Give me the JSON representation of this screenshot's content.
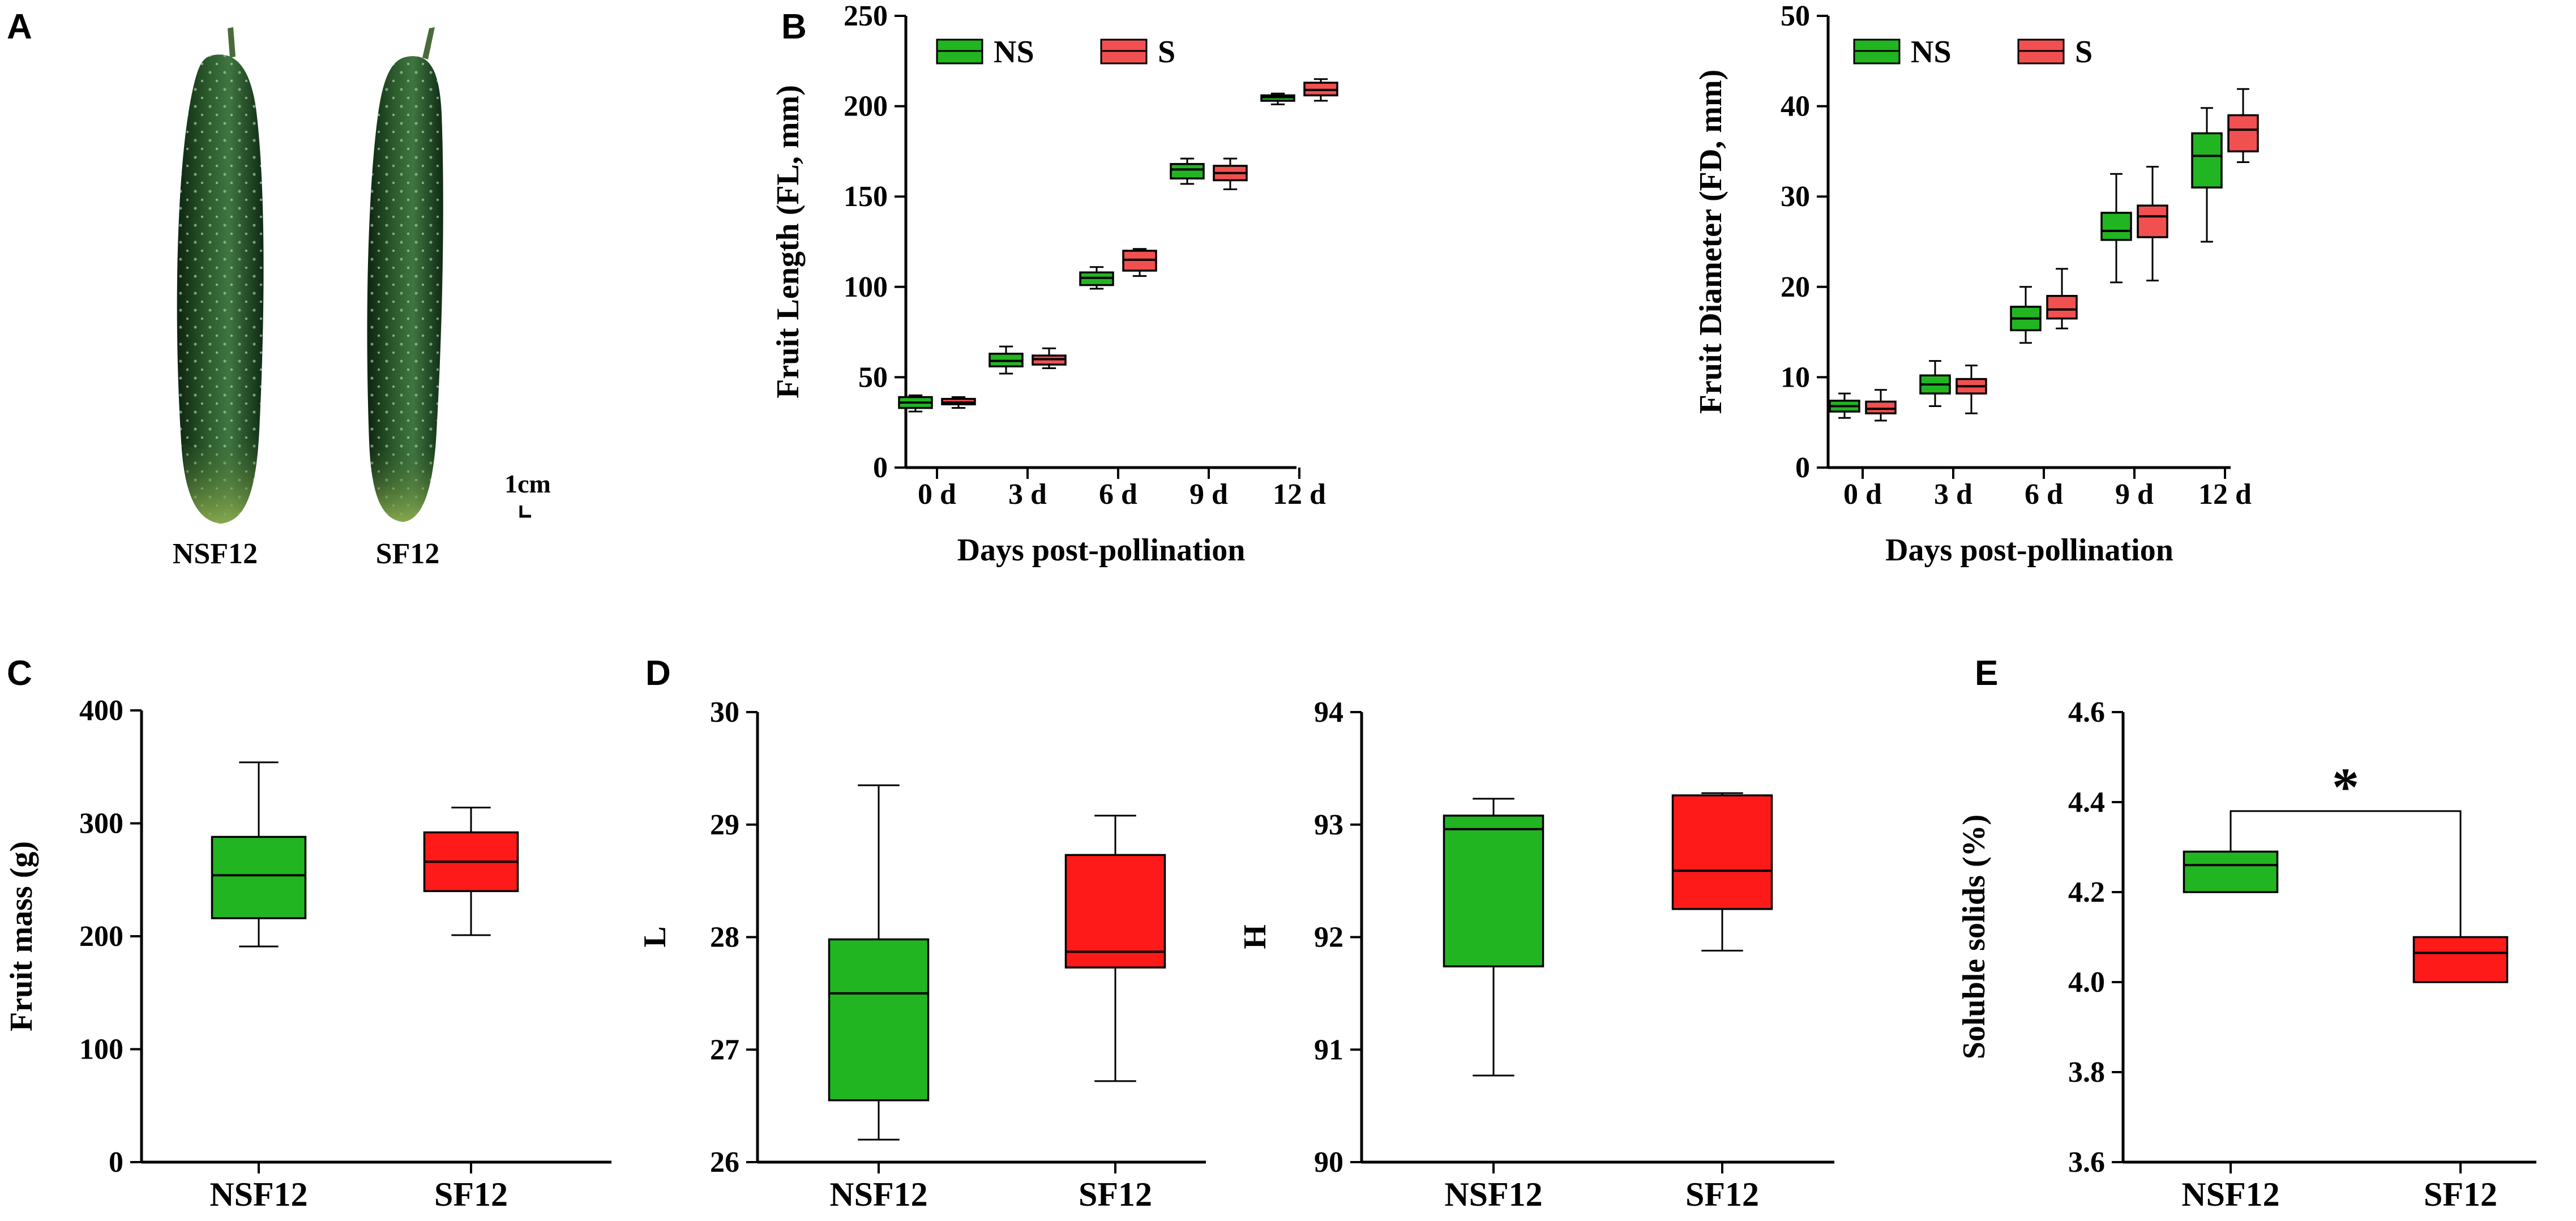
{
  "figure": {
    "panel_labels": [
      "A",
      "B",
      "C",
      "D",
      "E"
    ],
    "colors": {
      "green": "#22b522",
      "red": "#ff1a1a",
      "red_light": "#f25050"
    }
  },
  "photo": {
    "fruits": [
      {
        "label": "NSF12"
      },
      {
        "label": "SF12"
      }
    ],
    "scale_bar_label": "1cm"
  },
  "chart_data": [
    {
      "id": "B-left",
      "type": "boxplot",
      "categories": [
        "0 d",
        "3 d",
        "6 d",
        "9 d",
        "12 d"
      ],
      "xlabel": "Days post-pollination",
      "ylabel": "Fruit Length (FL, mm)",
      "ylim": [
        0,
        250
      ],
      "yticks": [
        0,
        50,
        100,
        150,
        200,
        250
      ],
      "legend": [
        "NS",
        "S"
      ],
      "series": [
        {
          "name": "NS",
          "color": "#22b522",
          "boxes": [
            {
              "min": 31,
              "q1": 33,
              "median": 36,
              "q3": 39,
              "max": 40
            },
            {
              "min": 52,
              "q1": 56,
              "median": 59,
              "q3": 63,
              "max": 67
            },
            {
              "min": 99,
              "q1": 101,
              "median": 105,
              "q3": 108,
              "max": 111
            },
            {
              "min": 157,
              "q1": 160,
              "median": 165,
              "q3": 168,
              "max": 171
            },
            {
              "min": 201,
              "q1": 203,
              "median": 205,
              "q3": 206,
              "max": 207
            }
          ]
        },
        {
          "name": "S",
          "color": "#f25050",
          "boxes": [
            {
              "min": 33,
              "q1": 35,
              "median": 36,
              "q3": 38,
              "max": 39
            },
            {
              "min": 55,
              "q1": 57,
              "median": 60,
              "q3": 62,
              "max": 66
            },
            {
              "min": 106,
              "q1": 109,
              "median": 115,
              "q3": 120,
              "max": 121
            },
            {
              "min": 154,
              "q1": 159,
              "median": 163,
              "q3": 167,
              "max": 171
            },
            {
              "min": 203,
              "q1": 206,
              "median": 209,
              "q3": 213,
              "max": 215
            }
          ]
        }
      ]
    },
    {
      "id": "B-right",
      "type": "boxplot",
      "categories": [
        "0 d",
        "3 d",
        "6 d",
        "9 d",
        "12 d"
      ],
      "xlabel": "Days post-pollination",
      "ylabel": "Fruit Diameter (FD, mm)",
      "ylim": [
        0,
        50
      ],
      "yticks": [
        0,
        10,
        20,
        30,
        40,
        50
      ],
      "legend": [
        "NS",
        "S"
      ],
      "series": [
        {
          "name": "NS",
          "color": "#22b522",
          "boxes": [
            {
              "min": 5.5,
              "q1": 6.2,
              "median": 6.8,
              "q3": 7.4,
              "max": 8.2
            },
            {
              "min": 6.8,
              "q1": 8.2,
              "median": 9.2,
              "q3": 10.2,
              "max": 11.8
            },
            {
              "min": 13.8,
              "q1": 15.2,
              "median": 16.5,
              "q3": 17.8,
              "max": 20.0
            },
            {
              "min": 20.5,
              "q1": 25.2,
              "median": 26.2,
              "q3": 28.2,
              "max": 32.5
            },
            {
              "min": 25.0,
              "q1": 31.0,
              "median": 34.5,
              "q3": 37.0,
              "max": 39.8
            }
          ]
        },
        {
          "name": "S",
          "color": "#f25050",
          "boxes": [
            {
              "min": 5.2,
              "q1": 6.0,
              "median": 6.5,
              "q3": 7.3,
              "max": 8.6
            },
            {
              "min": 6.0,
              "q1": 8.2,
              "median": 9.0,
              "q3": 9.8,
              "max": 11.3
            },
            {
              "min": 15.4,
              "q1": 16.5,
              "median": 17.5,
              "q3": 19.0,
              "max": 22.0
            },
            {
              "min": 20.7,
              "q1": 25.5,
              "median": 27.8,
              "q3": 29.0,
              "max": 33.3
            },
            {
              "min": 33.8,
              "q1": 35.0,
              "median": 37.4,
              "q3": 39.0,
              "max": 41.9
            }
          ]
        }
      ]
    },
    {
      "id": "C",
      "type": "boxplot",
      "categories": [
        "NSF12",
        "SF12"
      ],
      "xlabel": "",
      "ylabel": "Fruit mass (g)",
      "ylim": [
        0,
        400
      ],
      "yticks": [
        0,
        100,
        200,
        300,
        400
      ],
      "boxes": [
        {
          "color": "#22b522",
          "min": 191,
          "q1": 216,
          "median": 254,
          "q3": 288,
          "max": 354
        },
        {
          "color": "#ff1a1a",
          "min": 201,
          "q1": 240,
          "median": 266,
          "q3": 292,
          "max": 314
        }
      ]
    },
    {
      "id": "D-left",
      "type": "boxplot",
      "categories": [
        "NSF12",
        "SF12"
      ],
      "xlabel": "",
      "ylabel": "L",
      "ylim": [
        26,
        30
      ],
      "yticks": [
        26,
        27,
        28,
        29,
        30
      ],
      "boxes": [
        {
          "color": "#22b522",
          "min": 26.2,
          "q1": 26.55,
          "median": 27.5,
          "q3": 27.98,
          "max": 29.35
        },
        {
          "color": "#ff1a1a",
          "min": 26.72,
          "q1": 27.73,
          "median": 27.87,
          "q3": 28.73,
          "max": 29.08
        }
      ]
    },
    {
      "id": "D-right",
      "type": "boxplot",
      "categories": [
        "NSF12",
        "SF12"
      ],
      "xlabel": "",
      "ylabel": "H",
      "ylim": [
        90,
        94
      ],
      "yticks": [
        90,
        91,
        92,
        93,
        94
      ],
      "boxes": [
        {
          "color": "#22b522",
          "min": 90.77,
          "q1": 91.74,
          "median": 92.96,
          "q3": 93.08,
          "max": 93.23
        },
        {
          "color": "#ff1a1a",
          "min": 91.88,
          "q1": 92.25,
          "median": 92.59,
          "q3": 93.26,
          "max": 93.28
        }
      ]
    },
    {
      "id": "E",
      "type": "boxplot",
      "categories": [
        "NSF12",
        "SF12"
      ],
      "xlabel": "",
      "ylabel": "Soluble solids (%)",
      "ylim": [
        3.6,
        4.6
      ],
      "yticks": [
        3.6,
        3.8,
        4.0,
        4.2,
        4.4,
        4.6
      ],
      "significance": "*",
      "boxes": [
        {
          "color": "#22b522",
          "min": 4.2,
          "q1": 4.2,
          "median": 4.26,
          "q3": 4.29,
          "max": 4.29
        },
        {
          "color": "#ff1a1a",
          "min": 4.0,
          "q1": 4.0,
          "median": 4.065,
          "q3": 4.1,
          "max": 4.1
        }
      ]
    }
  ]
}
